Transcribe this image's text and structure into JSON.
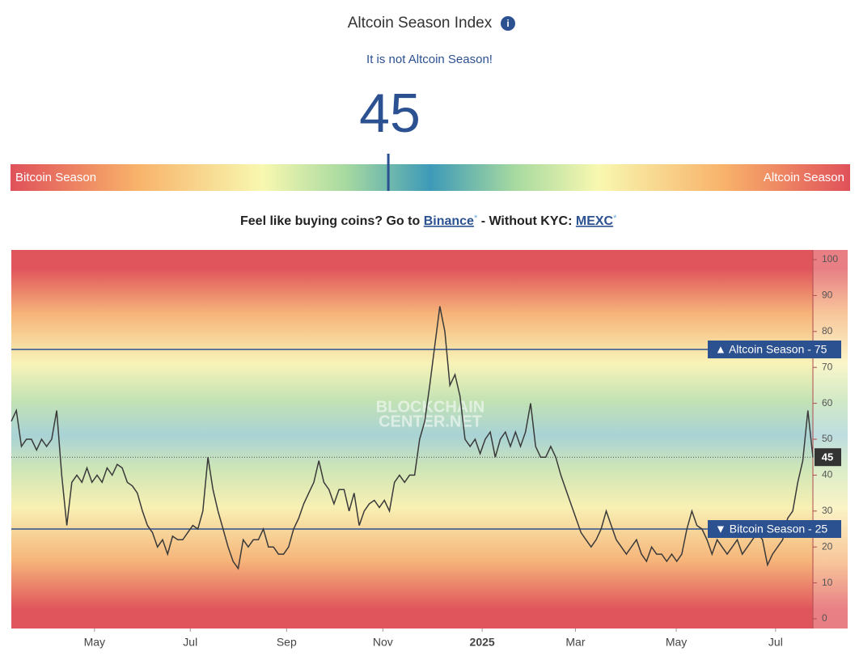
{
  "header": {
    "title": "Altcoin Season Index",
    "status": "It is not Altcoin Season!",
    "value": 45
  },
  "gauge": {
    "left_label": "Bitcoin Season",
    "right_label": "Altcoin Season"
  },
  "promo": {
    "lead": "Feel like buying coins? Go to",
    "link1": "Binance",
    "star1": "*",
    "middle": "- Without KYC:",
    "link2": "MEXC",
    "star2": "*"
  },
  "chart_data": {
    "type": "line",
    "color": "#3a3a3a",
    "values": [
      55,
      58,
      48,
      50,
      50,
      47,
      50,
      48,
      50,
      58,
      40,
      26,
      38,
      40,
      38,
      42,
      38,
      40,
      38,
      42,
      40,
      43,
      42,
      38,
      37,
      35,
      30,
      26,
      24,
      20,
      22,
      18,
      23,
      22,
      22,
      24,
      26,
      25,
      30,
      45,
      36,
      30,
      25,
      20,
      16,
      14,
      22,
      20,
      22,
      22,
      25,
      20,
      20,
      18,
      18,
      20,
      25,
      28,
      32,
      35,
      38,
      44,
      38,
      36,
      32,
      36,
      36,
      30,
      35,
      26,
      30,
      32,
      33,
      31,
      33,
      30,
      38,
      40,
      38,
      40,
      40,
      50,
      55,
      65,
      76,
      87,
      80,
      65,
      68,
      62,
      50,
      48,
      50,
      46,
      50,
      52,
      45,
      50,
      52,
      48,
      52,
      48,
      52,
      60,
      48,
      45,
      45,
      48,
      45,
      40,
      36,
      32,
      28,
      24,
      22,
      20,
      22,
      25,
      30,
      26,
      22,
      20,
      18,
      20,
      22,
      18,
      16,
      20,
      18,
      18,
      16,
      18,
      16,
      18,
      25,
      30,
      26,
      25,
      22,
      18,
      22,
      20,
      18,
      20,
      22,
      18,
      20,
      22,
      24,
      22,
      15,
      18,
      20,
      22,
      28,
      30,
      38,
      44,
      58,
      45
    ],
    "xlim": [
      0,
      159
    ],
    "xticks": [
      {
        "value": 16.5,
        "label": "May"
      },
      {
        "value": 35.5,
        "label": "Jul"
      },
      {
        "value": 54.6,
        "label": "Sep"
      },
      {
        "value": 73.7,
        "label": "Nov"
      },
      {
        "value": 93.4,
        "label": "2025"
      },
      {
        "value": 111.9,
        "label": "Mar"
      },
      {
        "value": 131.9,
        "label": "May"
      },
      {
        "value": 151.6,
        "label": "Jul"
      }
    ],
    "ylim": [
      -2.7,
      102.7
    ],
    "yticks": [
      0,
      10,
      20,
      30,
      40,
      50,
      60,
      70,
      80,
      90,
      100
    ],
    "reference_lines": [
      {
        "value": 75,
        "label": "▲ Altcoin Season - 75"
      },
      {
        "value": 25,
        "label": "▼ Bitcoin Season - 25"
      }
    ],
    "current": 45,
    "watermark": [
      "BLOCKCHAIN",
      "CENTER.NET"
    ]
  }
}
